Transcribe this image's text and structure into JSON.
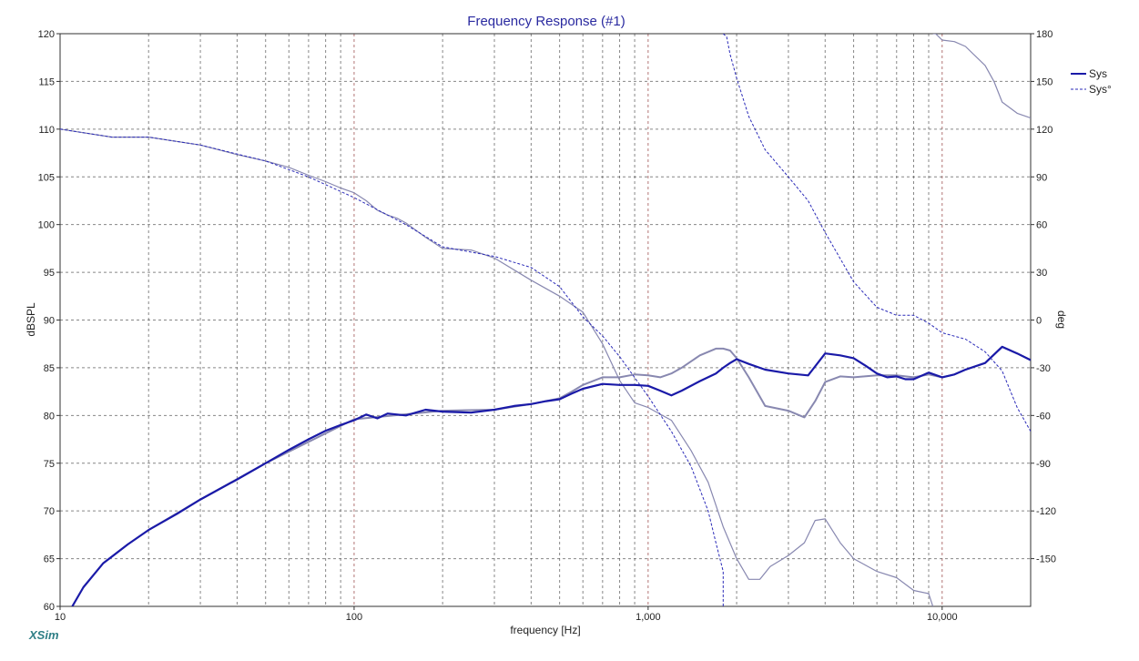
{
  "app": {
    "brand": "XSim"
  },
  "chart_data": {
    "type": "line",
    "title": "Frequency Response (#1)",
    "xlabel": "frequency [Hz]",
    "ylabel": "dBSPL",
    "y2label": "deg",
    "xscale": "log",
    "xlim": [
      10,
      20000
    ],
    "ylim": [
      60,
      120
    ],
    "y2lim": [
      -180,
      180
    ],
    "grid": true,
    "legend_position": "top-right",
    "x_tick_values": [
      10,
      100,
      1000,
      10000
    ],
    "x_tick_labels": [
      "10",
      "100",
      "1,000",
      "10,000"
    ],
    "y_ticks": [
      120,
      115,
      110,
      105,
      100,
      95,
      90,
      85,
      80,
      75,
      70,
      65,
      60
    ],
    "y2_ticks": [
      180,
      150,
      120,
      90,
      60,
      30,
      0,
      -30,
      -60,
      -90,
      -120,
      -150
    ],
    "colors": {
      "sys": "#1a1aa8",
      "sys_phase": "#2a2ab8",
      "ref": "#8888b0"
    },
    "legend": [
      {
        "label": "Sys",
        "style": "solid"
      },
      {
        "label": "Sys°",
        "style": "dashed"
      }
    ],
    "series": [
      {
        "name": "Sys",
        "axis": "left",
        "style": "solid-bold",
        "x": [
          11,
          12,
          14,
          17,
          20,
          25,
          30,
          40,
          50,
          60,
          70,
          80,
          90,
          100,
          110,
          120,
          130,
          150,
          175,
          200,
          250,
          300,
          350,
          400,
          450,
          500,
          550,
          600,
          700,
          800,
          900,
          1000,
          1100,
          1200,
          1300,
          1500,
          1700,
          1800,
          1900,
          2000,
          2200,
          2500,
          3000,
          3500,
          4000,
          4500,
          5000,
          5500,
          6000,
          6500,
          7000,
          7500,
          8000,
          9000,
          10000,
          11000,
          12000,
          14000,
          16000,
          18000,
          20000
        ],
        "y": [
          60,
          62,
          64.5,
          66.5,
          68,
          69.7,
          71.2,
          73.3,
          75,
          76.4,
          77.5,
          78.4,
          79,
          79.5,
          80.1,
          79.7,
          80.2,
          80,
          80.6,
          80.4,
          80.3,
          80.6,
          81,
          81.2,
          81.5,
          81.7,
          82.3,
          82.8,
          83.3,
          83.2,
          83.2,
          83.1,
          82.6,
          82.1,
          82.6,
          83.6,
          84.4,
          85,
          85.5,
          85.9,
          85.4,
          84.8,
          84.4,
          84.2,
          86.5,
          86.3,
          86,
          85.2,
          84.4,
          84,
          84.1,
          83.8,
          83.8,
          84.5,
          84,
          84.3,
          84.8,
          85.5,
          87.2,
          86.5,
          85.8
        ]
      },
      {
        "name": "Sys°",
        "axis": "right",
        "style": "dashed",
        "x": [
          10,
          15,
          20,
          30,
          50,
          70,
          100,
          150,
          200,
          300,
          400,
          500,
          600,
          700,
          800,
          1000,
          1200,
          1400,
          1600,
          1700,
          1800,
          1850,
          1900,
          2000,
          2200,
          2500,
          3000,
          3500,
          4000,
          5000,
          6000,
          7000,
          8000,
          9000,
          10000,
          12000,
          14000,
          16000,
          18000,
          20000
        ],
        "y": [
          120,
          115,
          115,
          110,
          100,
          90,
          77,
          60,
          46,
          40,
          33,
          21,
          2,
          -10,
          -23,
          -48,
          -70,
          -92,
          -120,
          -140,
          -158,
          178,
          167,
          152,
          128,
          107,
          90,
          75,
          55,
          24,
          8,
          3,
          3,
          -2,
          -8,
          -12,
          -20,
          -32,
          -55,
          -70
        ]
      },
      {
        "name": "",
        "axis": "left",
        "style": "solid-light",
        "x": [
          20,
          30,
          50,
          100,
          200,
          300,
          400,
          500,
          550,
          600,
          700,
          800,
          900,
          1000,
          1100,
          1200,
          1300,
          1500,
          1700,
          1800,
          1900,
          2000,
          2200,
          2500,
          3000,
          3400,
          3700,
          4000,
          4500,
          5000,
          6000,
          7000,
          8000,
          9000,
          10000,
          11000,
          12000,
          14000,
          16000,
          18000,
          20000
        ],
        "y": [
          68,
          71.2,
          75,
          79.6,
          80.5,
          80.6,
          81.2,
          81.8,
          82.5,
          83.2,
          84,
          84,
          84.3,
          84.2,
          84,
          84.4,
          85,
          86.3,
          87,
          87,
          86.8,
          86,
          84,
          81,
          80.5,
          79.8,
          81.5,
          83.5,
          84.1,
          84,
          84.2,
          84.2,
          84,
          84.3,
          84,
          84.3,
          84.8,
          85.5,
          87.2,
          86.5,
          85.8
        ]
      },
      {
        "name": "",
        "axis": "right",
        "style": "solid-light",
        "x": [
          10,
          15,
          20,
          30,
          40,
          50,
          60,
          70,
          80,
          90,
          100,
          110,
          120,
          130,
          140,
          150,
          175,
          200,
          250,
          300,
          400,
          500,
          600,
          700,
          800,
          900,
          1000,
          1200,
          1400,
          1600,
          1800,
          2000,
          2200,
          2400,
          2600,
          3000,
          3400,
          3700,
          4000,
          4500,
          5000,
          6000,
          7000,
          8000,
          9000,
          9300,
          9500,
          10000,
          11000,
          12000,
          14000,
          15000,
          16000,
          18000,
          20000
        ],
        "y": [
          120,
          115,
          115,
          110,
          104,
          100,
          96,
          91,
          87,
          83,
          80,
          75,
          69,
          66,
          64,
          61,
          52,
          45,
          44,
          39,
          25,
          15,
          5,
          -15,
          -38,
          -52,
          -55,
          -63,
          -82,
          -102,
          -130,
          -150,
          -163,
          -163,
          -155,
          -148,
          -140,
          -126,
          -125,
          -140,
          -150,
          -158,
          -162,
          -170,
          -172,
          -180,
          180,
          176,
          175,
          172,
          160,
          150,
          137,
          130,
          127
        ]
      }
    ]
  }
}
